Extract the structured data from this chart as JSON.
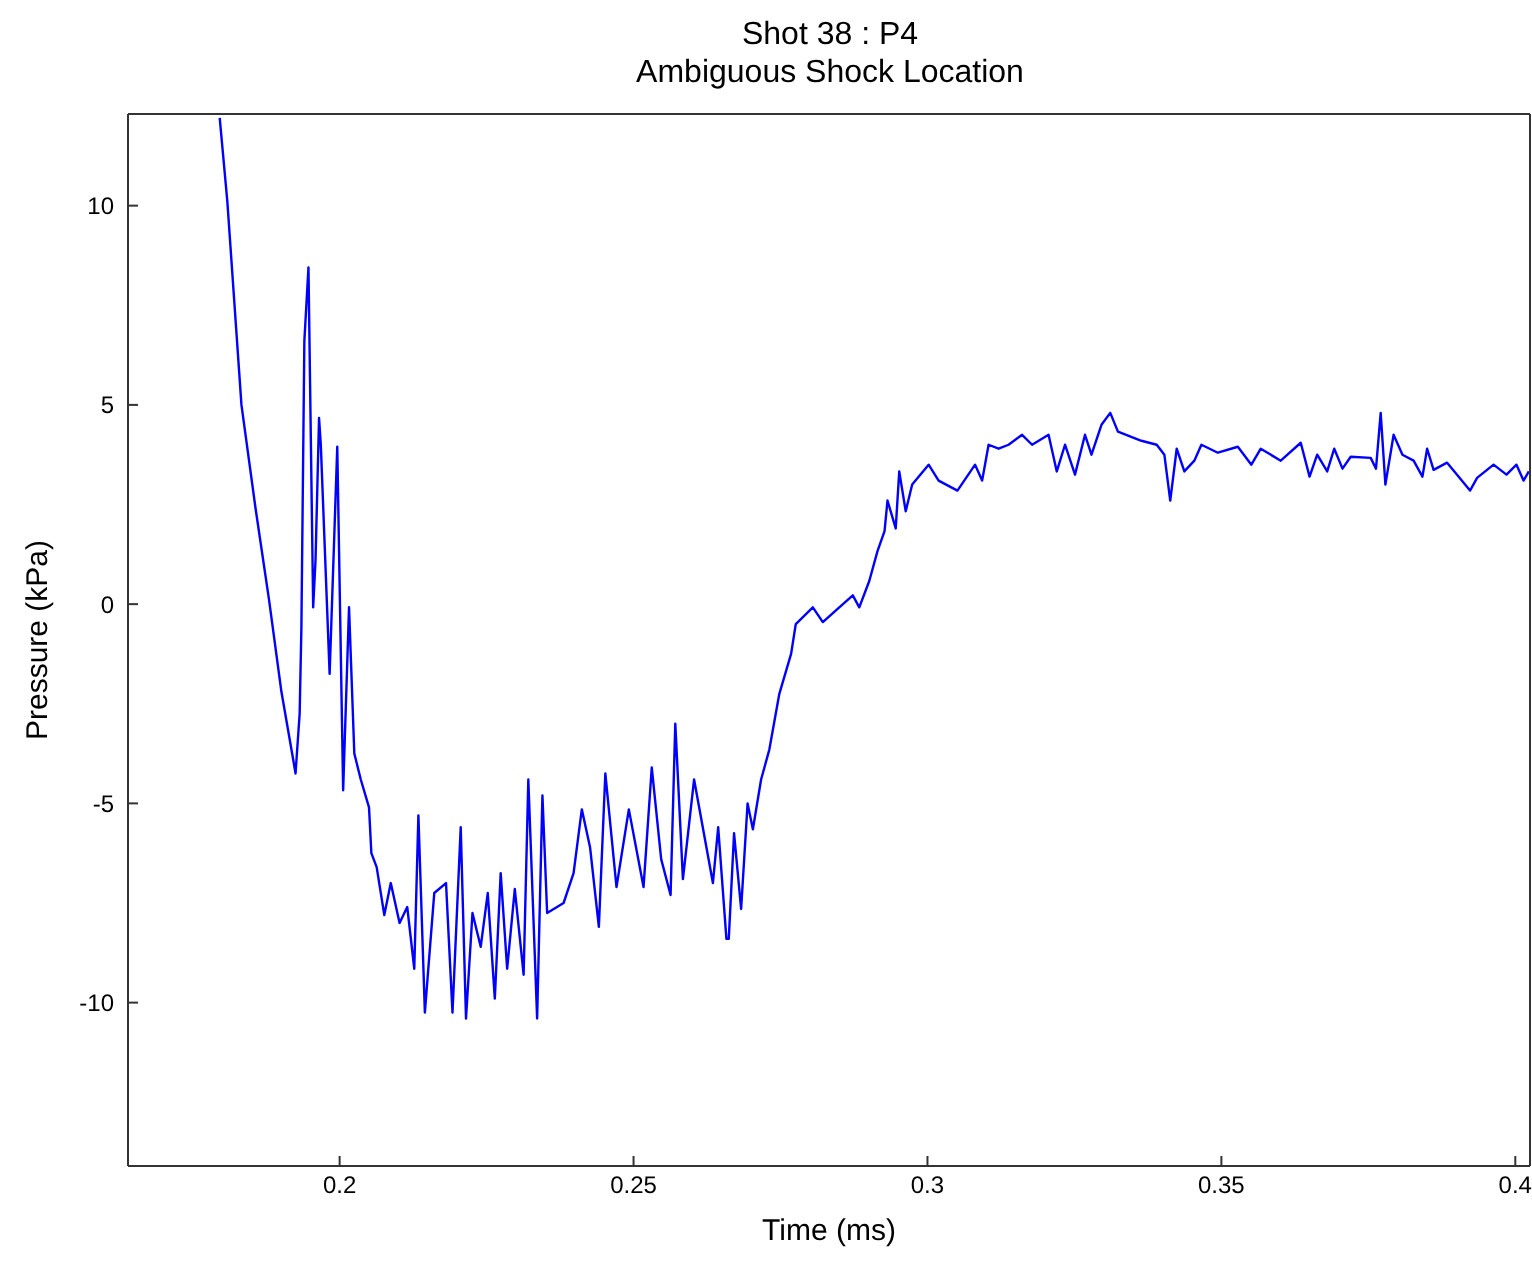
{
  "chart_data": {
    "type": "line",
    "title": "Shot 38 : P4",
    "subtitle": "Ambiguous Shock Location",
    "xlabel": "Time (ms)",
    "ylabel": "Pressure (kPa)",
    "xlim": [
      0.164,
      0.4025
    ],
    "xticks": [
      0.2,
      0.25,
      0.3,
      0.35,
      0.4
    ],
    "ylim": [
      -14.1,
      12.3
    ],
    "yticks": [
      -10,
      -5,
      0,
      5,
      10
    ],
    "legend": false,
    "marker": "none",
    "line_style": "solid",
    "series": [
      {
        "color": "#0000ff",
        "x": [
          0.1796,
          0.1809,
          0.1833,
          0.1857,
          0.188,
          0.1901,
          0.1921,
          0.1925,
          0.1932,
          0.1935,
          0.194,
          0.1947,
          0.1955,
          0.1959,
          0.1965,
          0.1968,
          0.1983,
          0.1996,
          0.2006,
          0.2016,
          0.2025,
          0.2036,
          0.205,
          0.2054,
          0.2063,
          0.2076,
          0.2087,
          0.2102,
          0.2115,
          0.2127,
          0.2134,
          0.2145,
          0.2161,
          0.2181,
          0.2192,
          0.2206,
          0.2215,
          0.2226,
          0.224,
          0.2252,
          0.2264,
          0.2274,
          0.2285,
          0.2298,
          0.2313,
          0.2321,
          0.2336,
          0.2345,
          0.2353,
          0.2381,
          0.2398,
          0.2412,
          0.2426,
          0.2441,
          0.2452,
          0.2471,
          0.2492,
          0.2517,
          0.2531,
          0.2547,
          0.2563,
          0.2571,
          0.2584,
          0.2603,
          0.2635,
          0.2644,
          0.2658,
          0.2662,
          0.2671,
          0.2683,
          0.2694,
          0.2703,
          0.2717,
          0.2731,
          0.2748,
          0.2768,
          0.2776,
          0.2805,
          0.2822,
          0.285,
          0.2873,
          0.2884,
          0.2901,
          0.2915,
          0.2927,
          0.2932,
          0.2946,
          0.2952,
          0.2963,
          0.2974,
          0.3002,
          0.3019,
          0.3051,
          0.3081,
          0.3093,
          0.3104,
          0.3121,
          0.3138,
          0.3161,
          0.3178,
          0.3206,
          0.322,
          0.3234,
          0.3251,
          0.3268,
          0.3279,
          0.3296,
          0.3311,
          0.3324,
          0.3364,
          0.339,
          0.3403,
          0.3413,
          0.3424,
          0.3437,
          0.3454,
          0.3466,
          0.3494,
          0.3528,
          0.3551,
          0.3567,
          0.3601,
          0.3635,
          0.365,
          0.3663,
          0.368,
          0.3692,
          0.3706,
          0.372,
          0.3754,
          0.3763,
          0.3771,
          0.3779,
          0.3793,
          0.3808,
          0.3827,
          0.3842,
          0.385,
          0.3861,
          0.3884,
          0.3923,
          0.3935,
          0.3963,
          0.3985,
          0.4002,
          0.4014,
          0.4023
        ],
        "values": [
          12.2,
          10.1,
          5.0,
          2.4,
          0.1,
          -2.2,
          -3.9,
          -4.25,
          -2.75,
          -0.57,
          6.6,
          8.45,
          -0.08,
          1.1,
          4.67,
          4.0,
          -1.75,
          3.95,
          -4.67,
          -0.08,
          -3.75,
          -4.4,
          -5.1,
          -6.25,
          -6.6,
          -7.8,
          -7.0,
          -8.0,
          -7.6,
          -9.15,
          -5.3,
          -10.25,
          -7.25,
          -7.0,
          -10.25,
          -5.6,
          -10.4,
          -7.75,
          -8.6,
          -7.25,
          -9.9,
          -6.75,
          -9.15,
          -7.15,
          -9.3,
          -4.4,
          -10.4,
          -4.8,
          -7.75,
          -7.5,
          -6.75,
          -5.15,
          -6.1,
          -8.1,
          -4.25,
          -7.1,
          -5.15,
          -7.1,
          -4.1,
          -6.4,
          -7.3,
          -3.0,
          -6.9,
          -4.4,
          -7.0,
          -5.6,
          -8.4,
          -8.4,
          -5.75,
          -7.65,
          -5.0,
          -5.65,
          -4.4,
          -3.65,
          -2.25,
          -1.25,
          -0.5,
          -0.08,
          -0.45,
          -0.08,
          0.22,
          -0.08,
          0.58,
          1.33,
          1.83,
          2.6,
          1.9,
          3.33,
          2.33,
          3.0,
          3.5,
          3.1,
          2.85,
          3.5,
          3.1,
          4.0,
          3.9,
          4.0,
          4.25,
          4.0,
          4.25,
          3.33,
          4.0,
          3.25,
          4.25,
          3.75,
          4.5,
          4.8,
          4.33,
          4.1,
          4.0,
          3.75,
          2.6,
          3.9,
          3.33,
          3.6,
          4.0,
          3.8,
          3.95,
          3.5,
          3.9,
          3.6,
          4.05,
          3.2,
          3.75,
          3.33,
          3.9,
          3.4,
          3.7,
          3.67,
          3.4,
          4.8,
          3.0,
          4.25,
          3.75,
          3.6,
          3.2,
          3.9,
          3.37,
          3.55,
          2.85,
          3.17,
          3.5,
          3.25,
          3.5,
          3.1,
          3.33
        ]
      }
    ]
  }
}
